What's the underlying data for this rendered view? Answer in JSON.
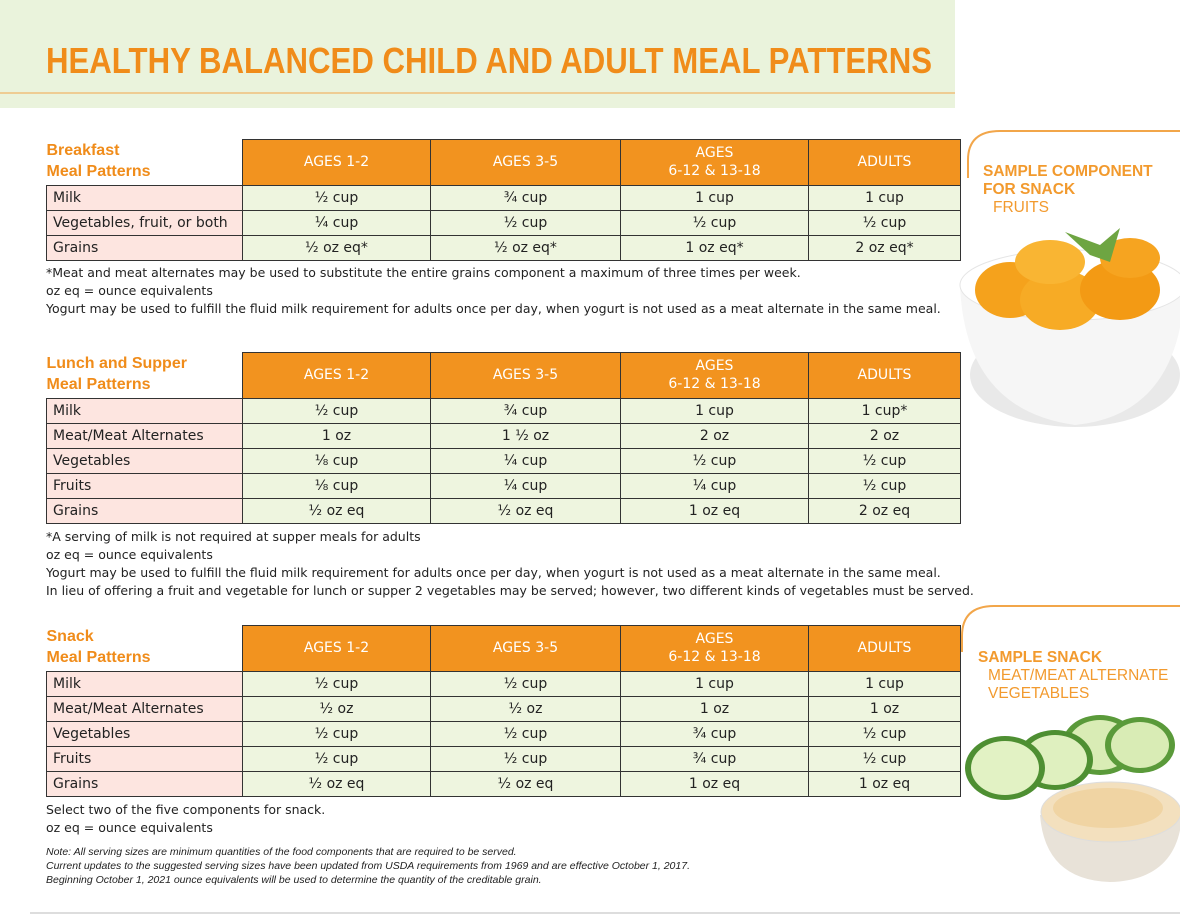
{
  "header": {
    "title": "HEALTHY BALANCED CHILD AND ADULT MEAL PATTERNS"
  },
  "sections": [
    {
      "label": [
        "Breakfast",
        "Meal Patterns"
      ],
      "columns": [
        [
          "AGES 1-2"
        ],
        [
          "AGES 3-5"
        ],
        [
          "AGES",
          "6-12 & 13-18"
        ],
        [
          "ADULTS"
        ]
      ],
      "rows": [
        [
          "Milk",
          "½ cup",
          "¾ cup",
          "1 cup",
          "1 cup"
        ],
        [
          "Vegetables, fruit, or both",
          "¼ cup",
          "½ cup",
          "½ cup",
          "½ cup"
        ],
        [
          "Grains",
          "½ oz eq*",
          "½ oz eq*",
          "1 oz eq*",
          "2 oz eq*"
        ]
      ],
      "notes": [
        "*Meat and meat alternates may be used to substitute the entire grains component a maximum of three times per week.",
        "oz eq = ounce equivalents",
        "Yogurt may be used to fulfill the fluid milk requirement for adults once per day, when yogurt is not used as a meat alternate in the same meal."
      ]
    },
    {
      "label": [
        "Lunch and Supper",
        "Meal Patterns"
      ],
      "columns": [
        [
          "AGES 1-2"
        ],
        [
          "AGES 3-5"
        ],
        [
          "AGES",
          "6-12 & 13-18"
        ],
        [
          "ADULTS"
        ]
      ],
      "rows": [
        [
          "Milk",
          "½ cup",
          "¾ cup",
          "1 cup",
          "1 cup*"
        ],
        [
          "Meat/Meat Alternates",
          "1 oz",
          "1 ½ oz",
          "2 oz",
          "2 oz"
        ],
        [
          "Vegetables",
          "⅛ cup",
          "¼ cup",
          "½ cup",
          "½ cup"
        ],
        [
          "Fruits",
          "⅛ cup",
          "¼ cup",
          "¼ cup",
          "½ cup"
        ],
        [
          "Grains",
          "½ oz eq",
          "½ oz eq",
          "1 oz eq",
          "2 oz eq"
        ]
      ],
      "notes": [
        "*A serving of milk is not required at supper meals for adults",
        "oz eq = ounce equivalents",
        "Yogurt may be used to fulfill the fluid milk requirement for adults once per day, when yogurt is not used as a meat alternate in the same meal.",
        "In lieu of offering a fruit and vegetable for lunch or supper 2 vegetables may be served; however, two different kinds of vegetables must be served."
      ]
    },
    {
      "label": [
        "Snack",
        "Meal Patterns"
      ],
      "columns": [
        [
          "AGES 1-2"
        ],
        [
          "AGES 3-5"
        ],
        [
          "AGES",
          "6-12 & 13-18"
        ],
        [
          "ADULTS"
        ]
      ],
      "rows": [
        [
          "Milk",
          "½ cup",
          "½ cup",
          "1 cup",
          "1 cup"
        ],
        [
          "Meat/Meat Alternates",
          "½ oz",
          "½ oz",
          "1 oz",
          "1 oz"
        ],
        [
          "Vegetables",
          "½ cup",
          "½ cup",
          "¾ cup",
          "½ cup"
        ],
        [
          "Fruits",
          "½ cup",
          "½ cup",
          "¾ cup",
          "½ cup"
        ],
        [
          "Grains",
          "½ oz eq",
          "½ oz eq",
          "1 oz eq",
          "1 oz eq"
        ]
      ],
      "notes": [
        "Select two of the five components for snack.",
        "oz eq = ounce equivalents"
      ]
    }
  ],
  "footnotes": [
    "Note: All serving sizes are minimum quantities of the food components that are required to be served.",
    "Current updates to the suggested serving sizes have been updated from USDA requirements from 1969 and are effective October 1, 2017.",
    "Beginning October 1, 2021 ounce equivalents will be used to determine the quantity of the creditable grain."
  ],
  "sidebar": [
    {
      "lines": [
        "SAMPLE COMPONENT",
        "FOR SNACK",
        "FRUITS"
      ]
    },
    {
      "lines": [
        "SAMPLE SNACK",
        "MEAT/MEAT ALTERNATE",
        "VEGETABLES"
      ]
    }
  ]
}
